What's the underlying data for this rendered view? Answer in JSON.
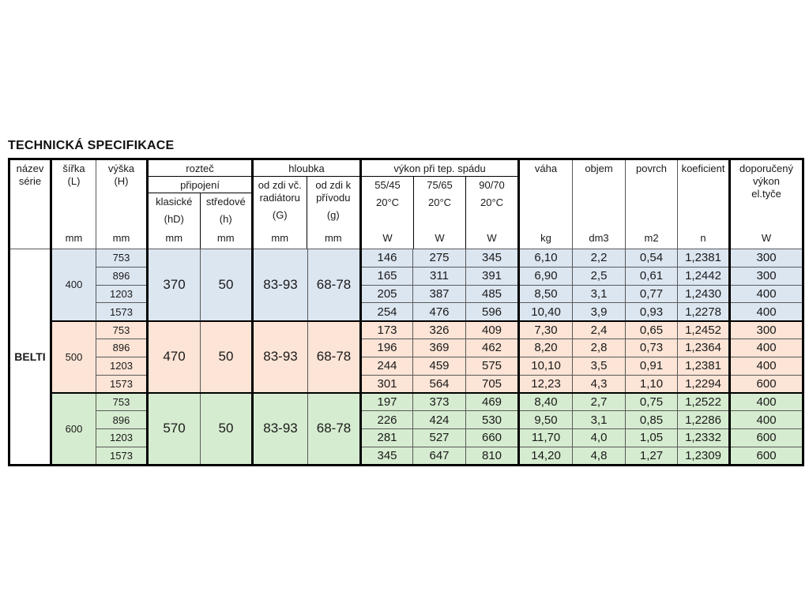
{
  "title": "TECHNICKÁ SPECIFIKACE",
  "series_name": "BELTI",
  "colors": {
    "blue": "#dce6f1",
    "peach": "#fce4d6",
    "green": "#d6ecd0"
  },
  "header": {
    "nazev": {
      "line1": "název",
      "line2": "série"
    },
    "sirka": {
      "label": "šířka",
      "sub": "(L)",
      "unit": "mm"
    },
    "vyska": {
      "label": "výška",
      "sub": "(H)",
      "unit": "mm"
    },
    "roztec": {
      "title": "rozteč",
      "subtitle": "připojení",
      "cols": [
        {
          "label": "klasické",
          "sub": "(hD)",
          "unit": "mm"
        },
        {
          "label": "středové",
          "sub": "(h)",
          "unit": "mm"
        }
      ]
    },
    "hloubka": {
      "title": "hloubka",
      "cols": [
        {
          "line1": "od zdi vč.",
          "line2": "radiátoru",
          "sub": "(G)",
          "unit": "mm"
        },
        {
          "line1": "od zdi k",
          "line2": "přívodu",
          "sub": "(g)",
          "unit": "mm"
        }
      ]
    },
    "vykon": {
      "title": "výkon při tep. spádu",
      "cols": [
        {
          "label": "55/45",
          "sub": "20°C",
          "unit": "W"
        },
        {
          "label": "75/65",
          "sub": "20°C",
          "unit": "W"
        },
        {
          "label": "90/70",
          "sub": "20°C",
          "unit": "W"
        }
      ]
    },
    "vaha": {
      "label": "váha",
      "unit": "kg"
    },
    "objem": {
      "label": "objem",
      "unit": "dm3"
    },
    "povrch": {
      "label": "povrch",
      "unit": "m2"
    },
    "koeficient": {
      "label": "koeficient",
      "unit": "n"
    },
    "doporuceny": {
      "line1": "doporučený",
      "line2": "výkon",
      "line3": "el.tyče",
      "unit": "W"
    }
  },
  "groups": [
    {
      "width": "400",
      "color": "blue",
      "klasicke": "370",
      "stredove": "50",
      "depth_g": "83-93",
      "depth_supply": "68-78",
      "rows": [
        {
          "vyska": "753",
          "w5545": "146",
          "w7565": "275",
          "w9070": "345",
          "vaha": "6,10",
          "objem": "2,2",
          "povrch": "0,54",
          "koef": "1,2381",
          "dop": "300"
        },
        {
          "vyska": "896",
          "w5545": "165",
          "w7565": "311",
          "w9070": "391",
          "vaha": "6,90",
          "objem": "2,5",
          "povrch": "0,61",
          "koef": "1,2442",
          "dop": "300"
        },
        {
          "vyska": "1203",
          "w5545": "205",
          "w7565": "387",
          "w9070": "485",
          "vaha": "8,50",
          "objem": "3,1",
          "povrch": "0,77",
          "koef": "1,2430",
          "dop": "400"
        },
        {
          "vyska": "1573",
          "w5545": "254",
          "w7565": "476",
          "w9070": "596",
          "vaha": "10,40",
          "objem": "3,9",
          "povrch": "0,93",
          "koef": "1,2278",
          "dop": "400"
        }
      ]
    },
    {
      "width": "500",
      "color": "peach",
      "klasicke": "470",
      "stredove": "50",
      "depth_g": "83-93",
      "depth_supply": "68-78",
      "rows": [
        {
          "vyska": "753",
          "w5545": "173",
          "w7565": "326",
          "w9070": "409",
          "vaha": "7,30",
          "objem": "2,4",
          "povrch": "0,65",
          "koef": "1,2452",
          "dop": "300"
        },
        {
          "vyska": "896",
          "w5545": "196",
          "w7565": "369",
          "w9070": "462",
          "vaha": "8,20",
          "objem": "2,8",
          "povrch": "0,73",
          "koef": "1,2364",
          "dop": "400"
        },
        {
          "vyska": "1203",
          "w5545": "244",
          "w7565": "459",
          "w9070": "575",
          "vaha": "10,10",
          "objem": "3,5",
          "povrch": "0,91",
          "koef": "1,2381",
          "dop": "400"
        },
        {
          "vyska": "1573",
          "w5545": "301",
          "w7565": "564",
          "w9070": "705",
          "vaha": "12,23",
          "objem": "4,3",
          "povrch": "1,10",
          "koef": "1,2294",
          "dop": "600"
        }
      ]
    },
    {
      "width": "600",
      "color": "green",
      "klasicke": "570",
      "stredove": "50",
      "depth_g": "83-93",
      "depth_supply": "68-78",
      "rows": [
        {
          "vyska": "753",
          "w5545": "197",
          "w7565": "373",
          "w9070": "469",
          "vaha": "8,40",
          "objem": "2,7",
          "povrch": "0,75",
          "koef": "1,2522",
          "dop": "400"
        },
        {
          "vyska": "896",
          "w5545": "226",
          "w7565": "424",
          "w9070": "530",
          "vaha": "9,50",
          "objem": "3,1",
          "povrch": "0,85",
          "koef": "1,2286",
          "dop": "400"
        },
        {
          "vyska": "1203",
          "w5545": "281",
          "w7565": "527",
          "w9070": "660",
          "vaha": "11,70",
          "objem": "4,0",
          "povrch": "1,05",
          "koef": "1,2332",
          "dop": "600"
        },
        {
          "vyska": "1573",
          "w5545": "345",
          "w7565": "647",
          "w9070": "810",
          "vaha": "14,20",
          "objem": "4,8",
          "povrch": "1,27",
          "koef": "1,2309",
          "dop": "600"
        }
      ]
    }
  ]
}
